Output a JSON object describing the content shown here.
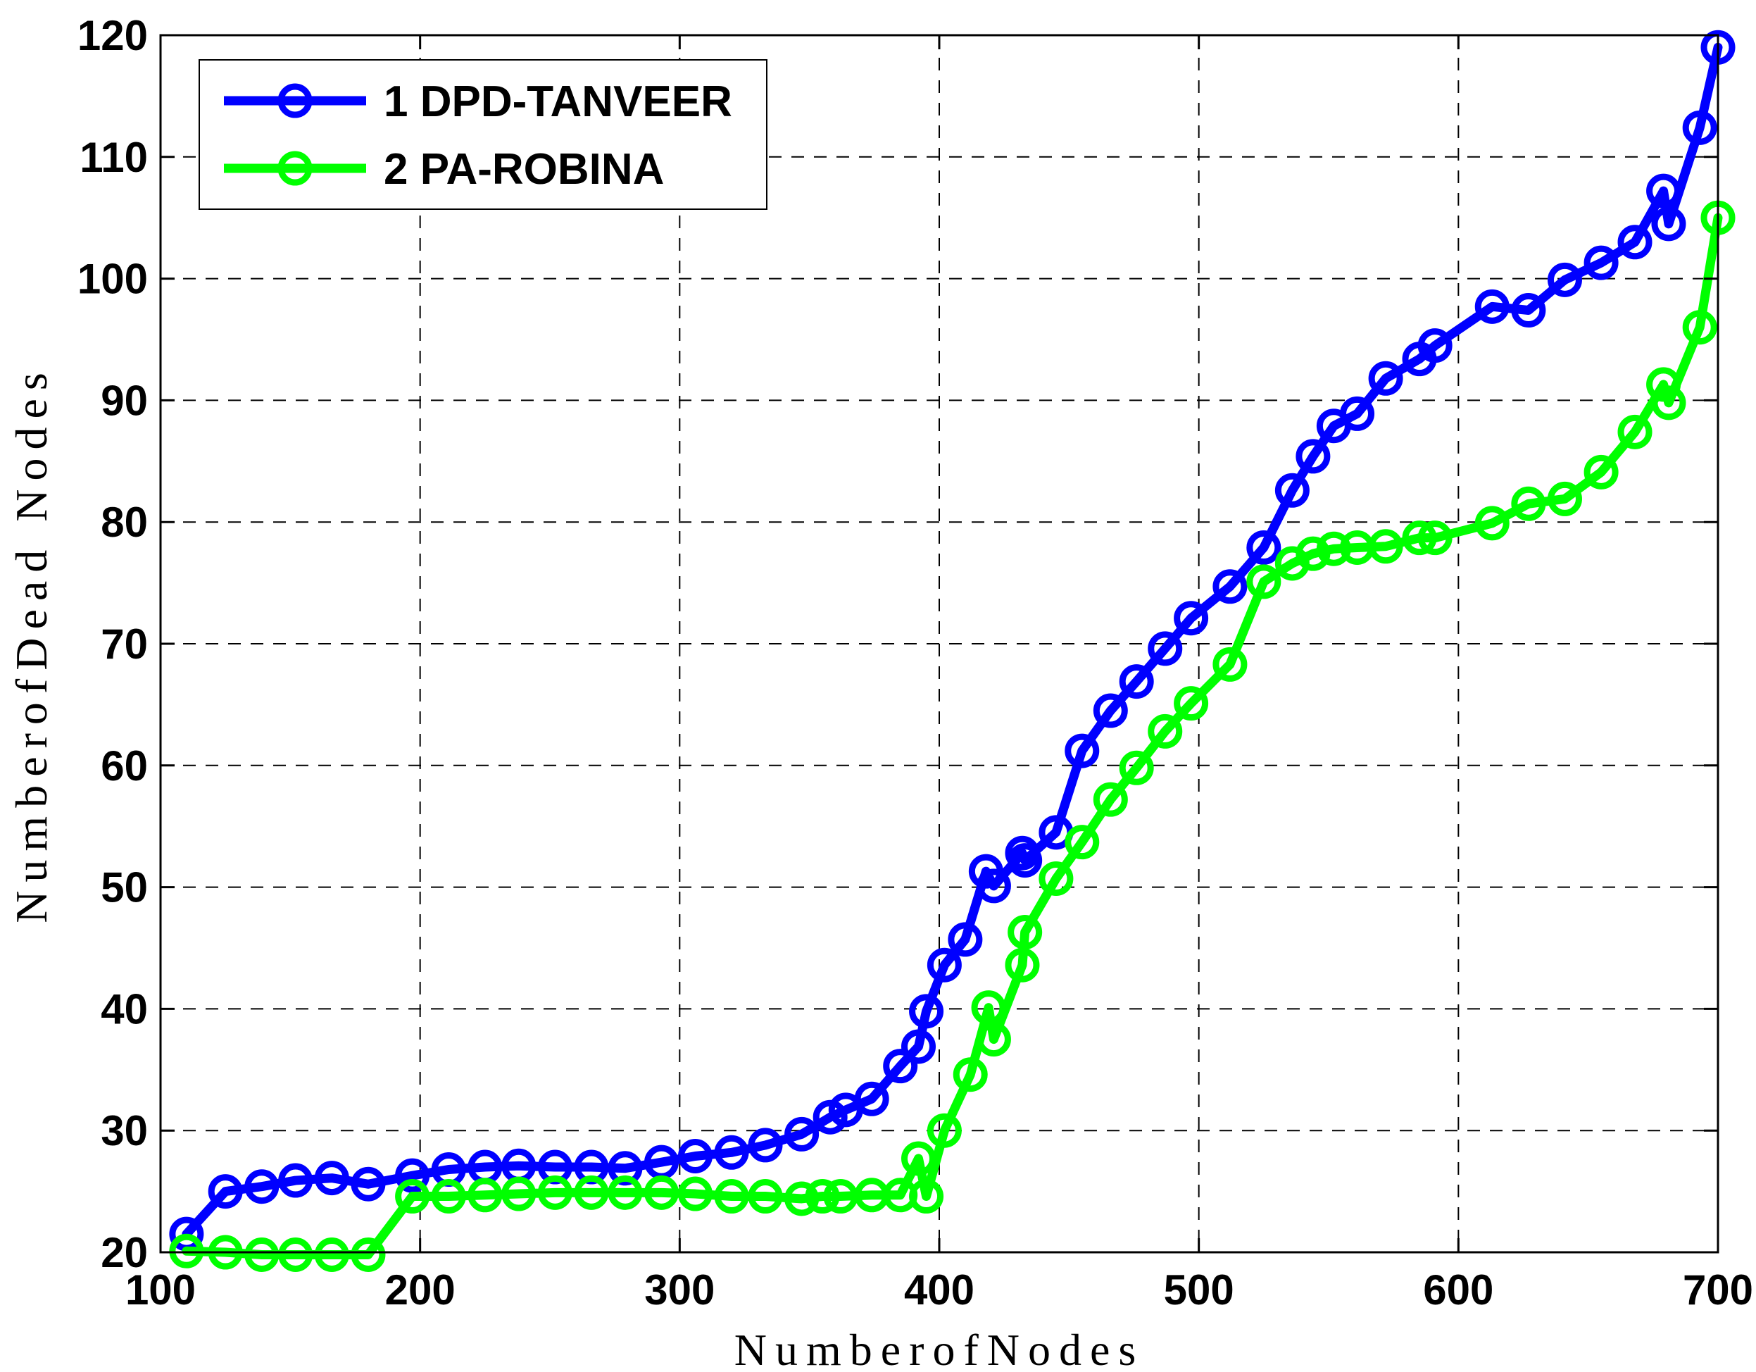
{
  "chart_data": {
    "type": "line",
    "title": "",
    "xlabel": "NumberofNodes",
    "ylabel": "NumberofDead Nodes",
    "xlim": [
      100,
      700
    ],
    "ylim": [
      20,
      120
    ],
    "xticks": [
      100,
      200,
      300,
      400,
      500,
      600,
      700
    ],
    "yticks": [
      20,
      30,
      40,
      50,
      60,
      70,
      80,
      90,
      100,
      110,
      120
    ],
    "grid": true,
    "legend_position": "top-left",
    "series": [
      {
        "name": "1 DPD-TANVEER",
        "color": "#0000ff",
        "marker": "circle",
        "points": [
          [
            110,
            21.5
          ],
          [
            125,
            25.0
          ],
          [
            139,
            25.4
          ],
          [
            152,
            25.9
          ],
          [
            166,
            26.1
          ],
          [
            180,
            25.6
          ],
          [
            197,
            26.3
          ],
          [
            211,
            26.8
          ],
          [
            225,
            27.0
          ],
          [
            238,
            27.1
          ],
          [
            252,
            27.0
          ],
          [
            266,
            27.0
          ],
          [
            279,
            26.9
          ],
          [
            293,
            27.4
          ],
          [
            306,
            27.9
          ],
          [
            320,
            28.2
          ],
          [
            333,
            28.8
          ],
          [
            347,
            29.7
          ],
          [
            358,
            31.1
          ],
          [
            364,
            31.7
          ],
          [
            374,
            32.6
          ],
          [
            385,
            35.3
          ],
          [
            392,
            36.9
          ],
          [
            395,
            39.8
          ],
          [
            402,
            43.6
          ],
          [
            410,
            45.7
          ],
          [
            418,
            51.3
          ],
          [
            421,
            50.1
          ],
          [
            432,
            52.8
          ],
          [
            433,
            52.2
          ],
          [
            445,
            54.5
          ],
          [
            455,
            61.2
          ],
          [
            466,
            64.5
          ],
          [
            476,
            66.9
          ],
          [
            487,
            69.6
          ],
          [
            497,
            72.1
          ],
          [
            512,
            74.7
          ],
          [
            525,
            77.9
          ],
          [
            536,
            82.6
          ],
          [
            544,
            85.4
          ],
          [
            552,
            87.9
          ],
          [
            561,
            88.9
          ],
          [
            572,
            91.8
          ],
          [
            585,
            93.4
          ],
          [
            591,
            94.5
          ],
          [
            613,
            97.7
          ],
          [
            627,
            97.4
          ],
          [
            641,
            99.9
          ],
          [
            655,
            101.3
          ],
          [
            668,
            103.0
          ],
          [
            679,
            107.2
          ],
          [
            681,
            104.5
          ],
          [
            693,
            112.4
          ],
          [
            700,
            119.0
          ]
        ]
      },
      {
        "name": "2 PA-ROBINA",
        "color": "#00ff00",
        "marker": "circle",
        "points": [
          [
            110,
            20.1
          ],
          [
            125,
            20.0
          ],
          [
            139,
            19.8
          ],
          [
            152,
            19.8
          ],
          [
            166,
            19.8
          ],
          [
            180,
            19.8
          ],
          [
            197,
            24.6
          ],
          [
            211,
            24.6
          ],
          [
            225,
            24.7
          ],
          [
            238,
            24.8
          ],
          [
            252,
            24.9
          ],
          [
            266,
            24.9
          ],
          [
            279,
            24.9
          ],
          [
            293,
            24.9
          ],
          [
            306,
            24.8
          ],
          [
            320,
            24.6
          ],
          [
            333,
            24.6
          ],
          [
            347,
            24.4
          ],
          [
            355,
            24.6
          ],
          [
            362,
            24.6
          ],
          [
            374,
            24.7
          ],
          [
            385,
            24.7
          ],
          [
            392,
            27.7
          ],
          [
            395,
            24.6
          ],
          [
            402,
            30.0
          ],
          [
            412,
            34.6
          ],
          [
            419,
            40.1
          ],
          [
            421,
            37.5
          ],
          [
            432,
            43.6
          ],
          [
            433,
            46.3
          ],
          [
            445,
            50.7
          ],
          [
            455,
            53.7
          ],
          [
            466,
            57.2
          ],
          [
            476,
            59.8
          ],
          [
            487,
            62.8
          ],
          [
            497,
            65.1
          ],
          [
            512,
            68.3
          ],
          [
            525,
            75.1
          ],
          [
            536,
            76.6
          ],
          [
            544,
            77.4
          ],
          [
            552,
            77.8
          ],
          [
            561,
            77.9
          ],
          [
            572,
            78.0
          ],
          [
            585,
            78.7
          ],
          [
            591,
            78.7
          ],
          [
            613,
            79.9
          ],
          [
            627,
            81.5
          ],
          [
            641,
            81.9
          ],
          [
            655,
            84.1
          ],
          [
            668,
            87.4
          ],
          [
            679,
            91.3
          ],
          [
            681,
            89.8
          ],
          [
            693,
            96.0
          ],
          [
            700,
            105.0
          ]
        ]
      }
    ]
  }
}
